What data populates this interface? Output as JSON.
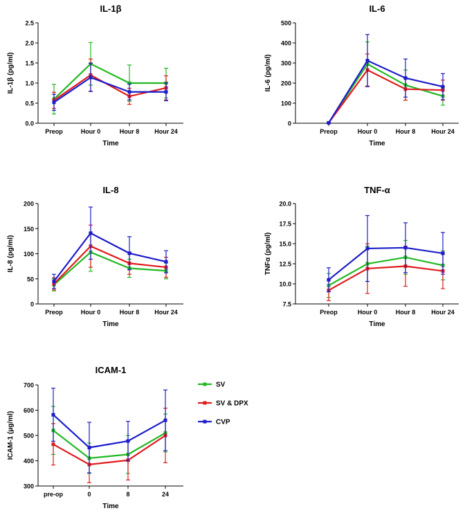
{
  "series_style": [
    {
      "name": "SV",
      "color": "#22b822"
    },
    {
      "name": "SV & DPX",
      "color": "#e01b1b"
    },
    {
      "name": "CVP",
      "color": "#1c1ccc"
    }
  ],
  "legend": {
    "items": [
      "SV",
      "SV & DPX",
      "CVP"
    ]
  },
  "chart_data": [
    {
      "type": "line",
      "title": "IL-1β",
      "xlabel": "Time",
      "ylabel": "IL-1β (pg/ml)",
      "categories": [
        "Preop",
        "Hour 0",
        "Hour 8",
        "Hour 24"
      ],
      "ylim": [
        0,
        2.5
      ],
      "yticks": [
        0.0,
        0.5,
        1.0,
        1.5,
        2.0,
        2.5
      ],
      "ytick_labels": [
        "0.0",
        "0.5",
        "1.0",
        "1.5",
        "2.0",
        "2.5"
      ],
      "series": [
        {
          "name": "SV",
          "values": [
            0.6,
            1.48,
            1.0,
            1.0
          ],
          "errors": [
            0.37,
            0.53,
            0.45,
            0.37
          ]
        },
        {
          "name": "SV & DPX",
          "values": [
            0.57,
            1.2,
            0.67,
            0.88
          ],
          "errors": [
            0.2,
            0.4,
            0.2,
            0.3
          ]
        },
        {
          "name": "CVP",
          "values": [
            0.52,
            1.14,
            0.78,
            0.78
          ],
          "errors": [
            0.2,
            0.35,
            0.2,
            0.22
          ]
        }
      ]
    },
    {
      "type": "line",
      "title": "IL-6",
      "xlabel": "Time",
      "ylabel": "IL-6 (pg/ml)",
      "categories": [
        "Preop",
        "Hour 0",
        "Hour 8",
        "Hour 24"
      ],
      "ylim": [
        0,
        500
      ],
      "yticks": [
        0,
        100,
        200,
        300,
        400,
        500
      ],
      "ytick_labels": [
        "0",
        "100",
        "200",
        "300",
        "400",
        "500"
      ],
      "series": [
        {
          "name": "SV",
          "values": [
            2,
            295,
            190,
            135
          ],
          "errors": [
            2,
            110,
            75,
            45
          ]
        },
        {
          "name": "SV & DPX",
          "values": [
            2,
            265,
            170,
            165
          ],
          "errors": [
            2,
            80,
            55,
            50
          ]
        },
        {
          "name": "CVP",
          "values": [
            2,
            312,
            225,
            182
          ],
          "errors": [
            2,
            130,
            95,
            65
          ]
        }
      ]
    },
    {
      "type": "line",
      "title": "IL-8",
      "xlabel": "Time",
      "ylabel": "IL-8 (pg/ml)",
      "categories": [
        "Preop",
        "Hour 0",
        "Hour 8",
        "Hour 24"
      ],
      "ylim": [
        0,
        200
      ],
      "yticks": [
        0,
        50,
        100,
        150,
        200
      ],
      "ytick_labels": [
        "0",
        "50",
        "100",
        "150",
        "200"
      ],
      "series": [
        {
          "name": "SV",
          "values": [
            38,
            103,
            71,
            66
          ],
          "errors": [
            12,
            38,
            18,
            16
          ]
        },
        {
          "name": "SV & DPX",
          "values": [
            40,
            115,
            81,
            73
          ],
          "errors": [
            12,
            42,
            22,
            20
          ]
        },
        {
          "name": "CVP",
          "values": [
            45,
            141,
            101,
            84
          ],
          "errors": [
            14,
            52,
            33,
            22
          ]
        }
      ]
    },
    {
      "type": "line",
      "title": "TNF-α",
      "xlabel": "Time",
      "ylabel": "TNFα (pg/ml)",
      "categories": [
        "Preop",
        "Hour 0",
        "Hour 8",
        "Hour 24"
      ],
      "ylim": [
        7.5,
        20.0
      ],
      "yticks": [
        7.5,
        10.0,
        12.5,
        15.0,
        17.5,
        20.0
      ],
      "ytick_labels": [
        "7.5",
        "10.0",
        "12.5",
        "15.0",
        "17.5",
        "20.0"
      ],
      "series": [
        {
          "name": "SV",
          "values": [
            9.8,
            12.5,
            13.3,
            12.3
          ],
          "errors": [
            1.5,
            2.2,
            2.1,
            1.8
          ]
        },
        {
          "name": "SV & DPX",
          "values": [
            9.2,
            11.9,
            12.2,
            11.6
          ],
          "errors": [
            1.3,
            3.1,
            2.5,
            2.2
          ]
        },
        {
          "name": "CVP",
          "values": [
            10.5,
            14.4,
            14.5,
            13.8
          ],
          "errors": [
            1.5,
            4.1,
            3.1,
            2.6
          ]
        }
      ]
    },
    {
      "type": "line",
      "title": "ICAM-1",
      "xlabel": "Time",
      "ylabel": "ICAM-1 (μg/ml)",
      "categories": [
        "pre-op",
        "0",
        "8",
        "24"
      ],
      "ylim": [
        300,
        700
      ],
      "yticks": [
        300,
        400,
        500,
        600,
        700
      ],
      "ytick_labels": [
        "300",
        "400",
        "500",
        "600",
        "700"
      ],
      "series": [
        {
          "name": "SV",
          "values": [
            520,
            410,
            425,
            510
          ],
          "errors": [
            95,
            60,
            75,
            75
          ]
        },
        {
          "name": "SV & DPX",
          "values": [
            465,
            385,
            402,
            500
          ],
          "errors": [
            82,
            72,
            78,
            108
          ]
        },
        {
          "name": "CVP",
          "values": [
            582,
            452,
            478,
            560
          ],
          "errors": [
            105,
            100,
            78,
            120
          ]
        }
      ]
    }
  ]
}
